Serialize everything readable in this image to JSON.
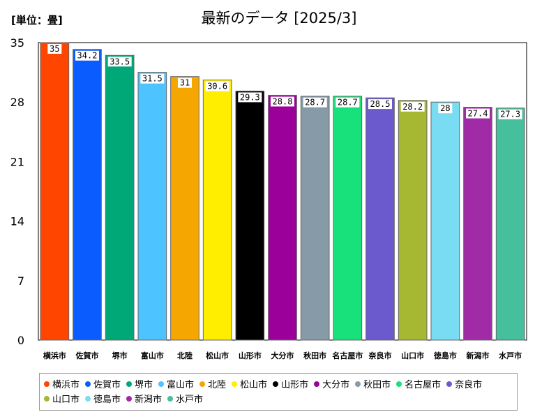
{
  "unit_label": "[単位：畳]",
  "chart_data": {
    "type": "bar",
    "title": "最新のデータ [2025/3]",
    "xlabel": "",
    "ylabel": "",
    "ylim": [
      0,
      35
    ],
    "yticks": [
      0,
      7,
      14,
      21,
      28,
      35
    ],
    "grid": false,
    "legend_position": "bottom",
    "categories": [
      "横浜市",
      "佐賀市",
      "堺市",
      "富山市",
      "北陸",
      "松山市",
      "山形市",
      "大分市",
      "秋田市",
      "名古屋市",
      "奈良市",
      "山口市",
      "徳島市",
      "新潟市",
      "水戸市"
    ],
    "values": [
      35,
      34.2,
      33.5,
      31.5,
      31,
      30.6,
      29.3,
      28.8,
      28.7,
      28.7,
      28.5,
      28.2,
      28,
      27.4,
      27.3
    ],
    "value_labels": [
      "35",
      "34.2",
      "33.5",
      "31.5",
      "31",
      "30.6",
      "29.3",
      "28.8",
      "28.7",
      "28.7",
      "28.5",
      "28.2",
      "28",
      "27.4",
      "27.3"
    ],
    "colors": [
      "#ff4500",
      "#0a5cff",
      "#00a878",
      "#4dc3ff",
      "#f5a600",
      "#ffee00",
      "#000000",
      "#9b009b",
      "#869aa8",
      "#18e07a",
      "#6a5acd",
      "#a6b832",
      "#7adcf2",
      "#a12aa6",
      "#46bf9c"
    ]
  }
}
